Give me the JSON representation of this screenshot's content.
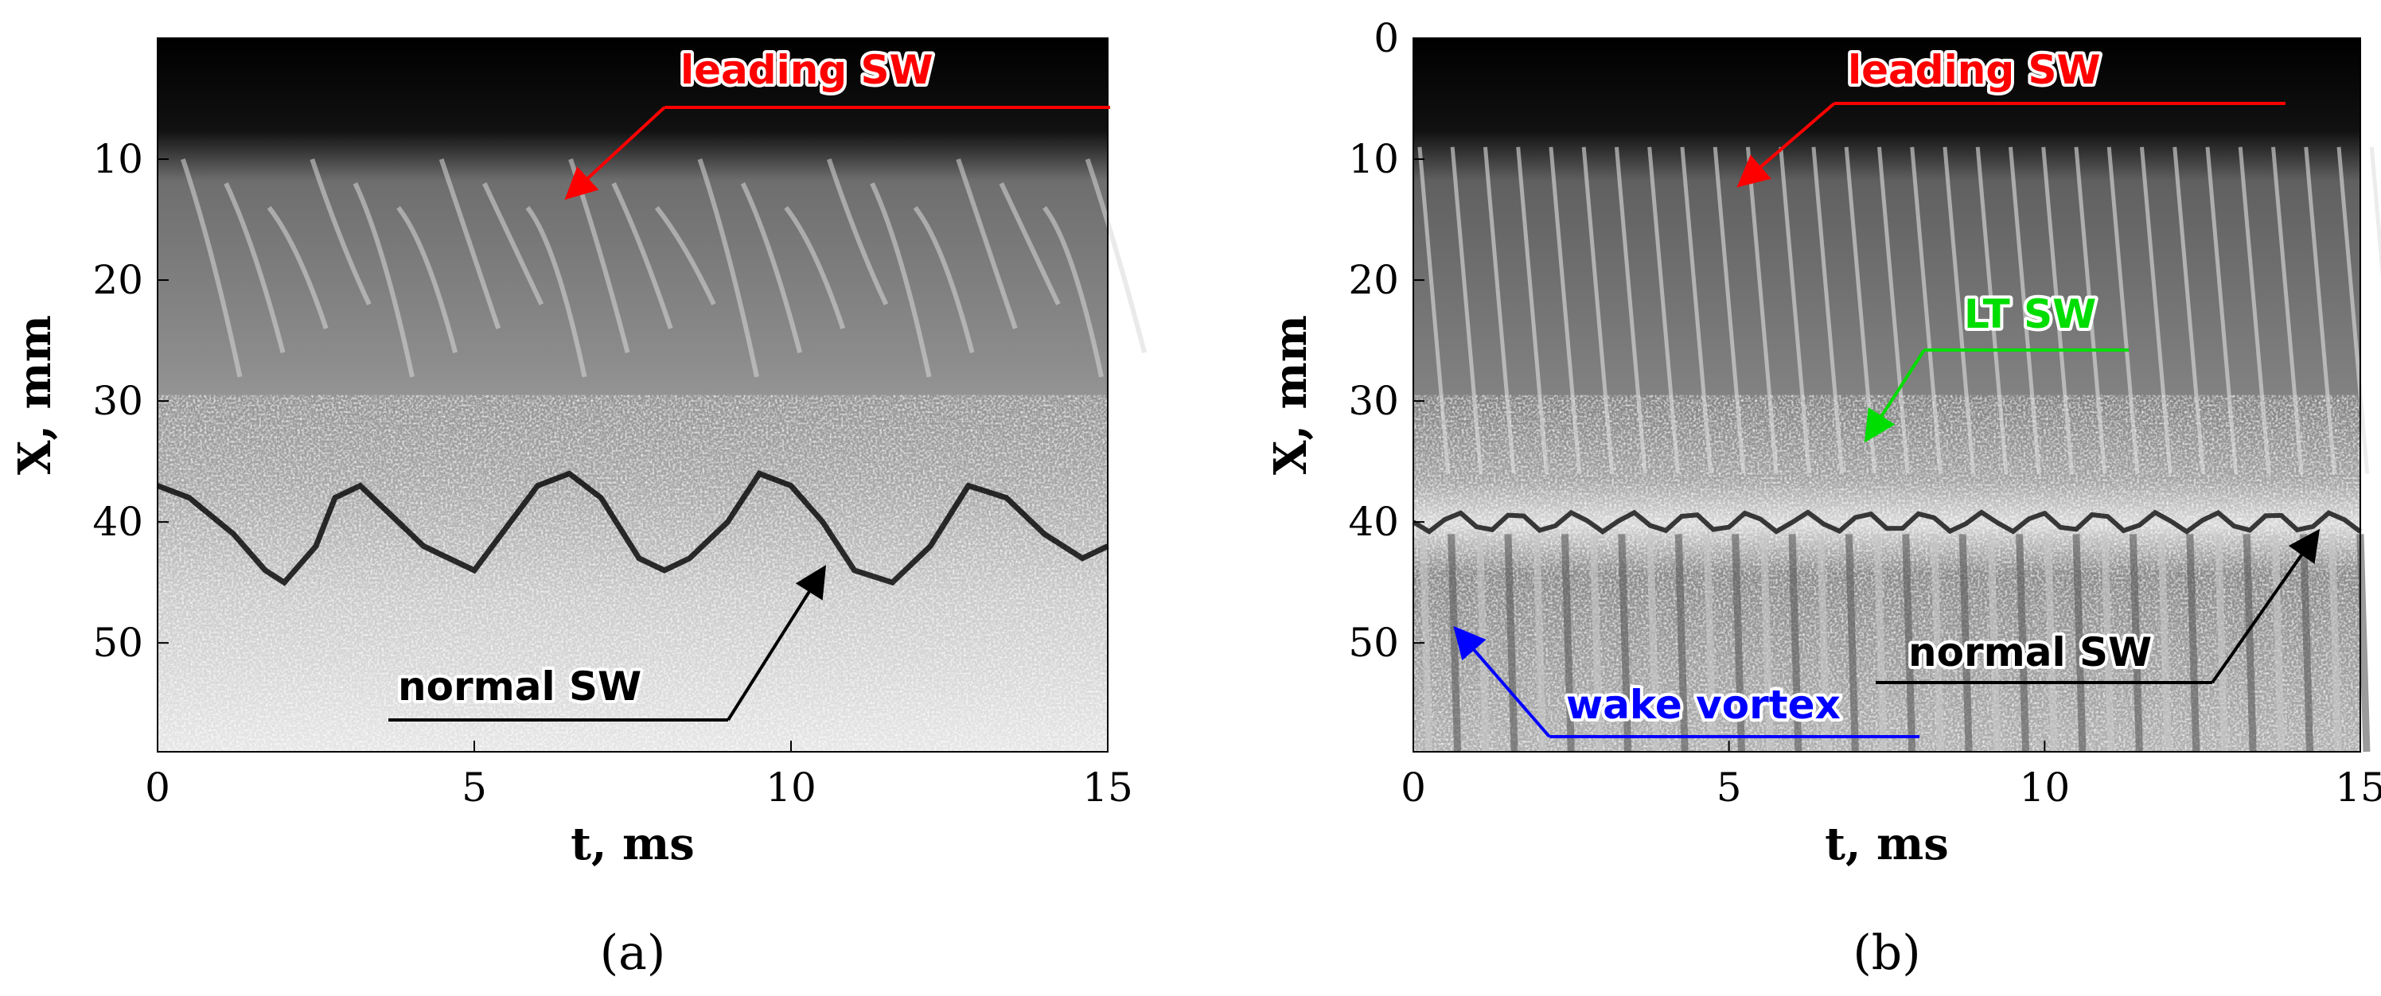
{
  "chart_data": [
    {
      "type": "heatmap",
      "panel_label": "(a)",
      "xlabel": "t, ms",
      "ylabel": "X, mm",
      "xlim": [
        0,
        15
      ],
      "ylim": [
        0,
        59
      ],
      "y_reversed": true,
      "x_ticks": [
        0,
        5,
        10,
        15
      ],
      "y_ticks": [
        10,
        20,
        30,
        40,
        50
      ],
      "colormap": "grayscale",
      "normal_sw_trace": {
        "t": [
          0,
          0.5,
          1.2,
          1.7,
          2.0,
          2.5,
          2.8,
          3.2,
          3.6,
          4.2,
          5.0,
          6.0,
          6.5,
          7.0,
          7.6,
          8.0,
          8.4,
          9.0,
          9.5,
          10.0,
          10.5,
          11.0,
          11.6,
          12.2,
          12.8,
          13.4,
          14.0,
          14.6,
          15.0
        ],
        "x": [
          37,
          38,
          41,
          44,
          45,
          42,
          38,
          37,
          39,
          42,
          44,
          37,
          36,
          38,
          43,
          44,
          43,
          40,
          36,
          37,
          40,
          44,
          45,
          42,
          37,
          38,
          41,
          43,
          42
        ]
      },
      "annotations": [
        {
          "text": "leading SW",
          "color": "#ff0000",
          "t": 6.5,
          "x": 13
        },
        {
          "text": "normal SW",
          "color": "#000000",
          "t": 10.5,
          "x": 44
        }
      ]
    },
    {
      "type": "heatmap",
      "panel_label": "(b)",
      "xlabel": "t, ms",
      "ylabel": "X, mm",
      "xlim": [
        0,
        15
      ],
      "ylim": [
        0,
        59
      ],
      "y_reversed": true,
      "x_ticks": [
        0,
        5,
        10,
        15
      ],
      "y_ticks": [
        0,
        10,
        20,
        30,
        40,
        50
      ],
      "colormap": "grayscale",
      "normal_sw_mean_x": 40,
      "annotations": [
        {
          "text": "leading SW",
          "color": "#ff0000",
          "t": 5.2,
          "x": 12
        },
        {
          "text": "LT SW",
          "color": "#00dd00",
          "t": 7.2,
          "x": 33
        },
        {
          "text": "normal SW",
          "color": "#000000",
          "t": 14.3,
          "x": 41
        },
        {
          "text": "wake vortex",
          "color": "#0000ff",
          "t": 0.7,
          "x": 49
        }
      ]
    }
  ]
}
